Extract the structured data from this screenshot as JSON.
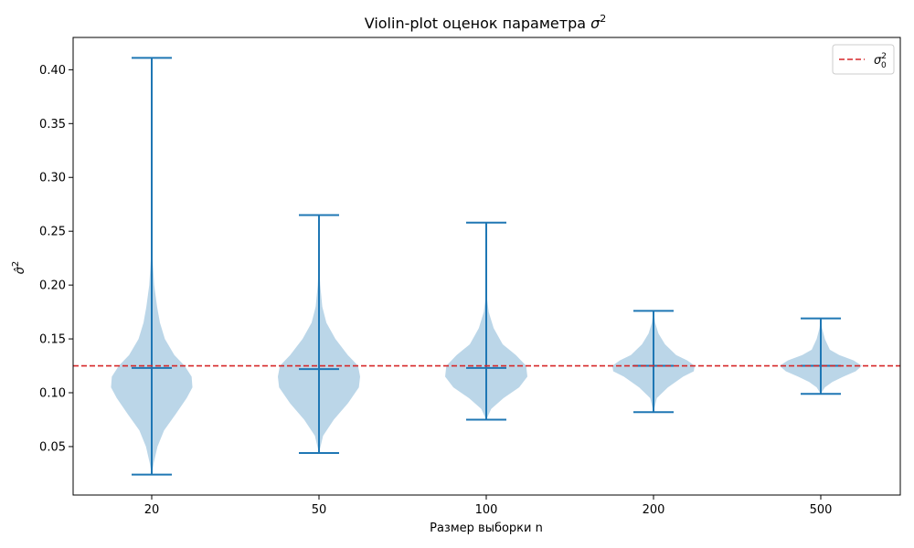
{
  "chart_data": {
    "type": "violin",
    "title_text": "Violin-plot оценок параметра ",
    "title_symbol": "σ",
    "title_superscript": "2",
    "xlabel": "Размер выборки n",
    "ylabel_symbol": "σ̂",
    "ylabel_superscript": "2",
    "categories": [
      "20",
      "50",
      "100",
      "200",
      "500"
    ],
    "ylim": [
      0.005,
      0.43
    ],
    "yticks": [
      0.05,
      0.1,
      0.15,
      0.2,
      0.25,
      0.3,
      0.35,
      0.4
    ],
    "ytick_labels": [
      "0.05",
      "0.10",
      "0.15",
      "0.20",
      "0.25",
      "0.30",
      "0.35",
      "0.40"
    ],
    "reference_line": {
      "value": 0.125,
      "legend_symbol": "σ",
      "legend_subscript": "0",
      "legend_superscript": "2",
      "color": "#d62728"
    },
    "violin_color": "#1f77b4",
    "violin_fill_opacity": 0.3,
    "violins": [
      {
        "category": "20",
        "min": 0.024,
        "max": 0.411,
        "median": 0.123,
        "profile": [
          [
            0.024,
            0.0
          ],
          [
            0.035,
            0.05
          ],
          [
            0.05,
            0.14
          ],
          [
            0.065,
            0.3
          ],
          [
            0.08,
            0.58
          ],
          [
            0.095,
            0.85
          ],
          [
            0.105,
            0.99
          ],
          [
            0.115,
            0.97
          ],
          [
            0.125,
            0.8
          ],
          [
            0.135,
            0.55
          ],
          [
            0.15,
            0.32
          ],
          [
            0.165,
            0.2
          ],
          [
            0.18,
            0.13
          ],
          [
            0.2,
            0.06
          ],
          [
            0.225,
            0.02
          ],
          [
            0.25,
            0.005
          ],
          [
            0.3,
            0.003
          ],
          [
            0.411,
            0.0
          ]
        ]
      },
      {
        "category": "50",
        "min": 0.044,
        "max": 0.265,
        "median": 0.122,
        "profile": [
          [
            0.044,
            0.0
          ],
          [
            0.06,
            0.1
          ],
          [
            0.075,
            0.36
          ],
          [
            0.09,
            0.7
          ],
          [
            0.105,
            0.97
          ],
          [
            0.115,
            1.0
          ],
          [
            0.125,
            0.95
          ],
          [
            0.135,
            0.7
          ],
          [
            0.15,
            0.4
          ],
          [
            0.165,
            0.18
          ],
          [
            0.18,
            0.08
          ],
          [
            0.2,
            0.03
          ],
          [
            0.22,
            0.005
          ],
          [
            0.265,
            0.0
          ]
        ]
      },
      {
        "category": "100",
        "min": 0.075,
        "max": 0.258,
        "median": 0.123,
        "profile": [
          [
            0.075,
            0.0
          ],
          [
            0.085,
            0.12
          ],
          [
            0.095,
            0.42
          ],
          [
            0.105,
            0.8
          ],
          [
            0.115,
            1.0
          ],
          [
            0.125,
            0.97
          ],
          [
            0.135,
            0.72
          ],
          [
            0.145,
            0.4
          ],
          [
            0.16,
            0.18
          ],
          [
            0.175,
            0.06
          ],
          [
            0.19,
            0.01
          ],
          [
            0.258,
            0.0
          ]
        ]
      },
      {
        "category": "200",
        "min": 0.082,
        "max": 0.176,
        "median": 0.125,
        "profile": [
          [
            0.082,
            0.0
          ],
          [
            0.095,
            0.08
          ],
          [
            0.105,
            0.35
          ],
          [
            0.115,
            0.72
          ],
          [
            0.12,
            0.98
          ],
          [
            0.125,
            1.0
          ],
          [
            0.13,
            0.82
          ],
          [
            0.135,
            0.55
          ],
          [
            0.145,
            0.28
          ],
          [
            0.155,
            0.12
          ],
          [
            0.165,
            0.04
          ],
          [
            0.176,
            0.0
          ]
        ]
      },
      {
        "category": "500",
        "min": 0.099,
        "max": 0.169,
        "median": 0.125,
        "profile": [
          [
            0.099,
            0.0
          ],
          [
            0.105,
            0.1
          ],
          [
            0.11,
            0.28
          ],
          [
            0.115,
            0.55
          ],
          [
            0.12,
            0.85
          ],
          [
            0.125,
            1.0
          ],
          [
            0.13,
            0.8
          ],
          [
            0.135,
            0.45
          ],
          [
            0.14,
            0.22
          ],
          [
            0.15,
            0.1
          ],
          [
            0.16,
            0.03
          ],
          [
            0.169,
            0.0
          ]
        ]
      }
    ],
    "grid": false,
    "legend_position": "top-right"
  }
}
